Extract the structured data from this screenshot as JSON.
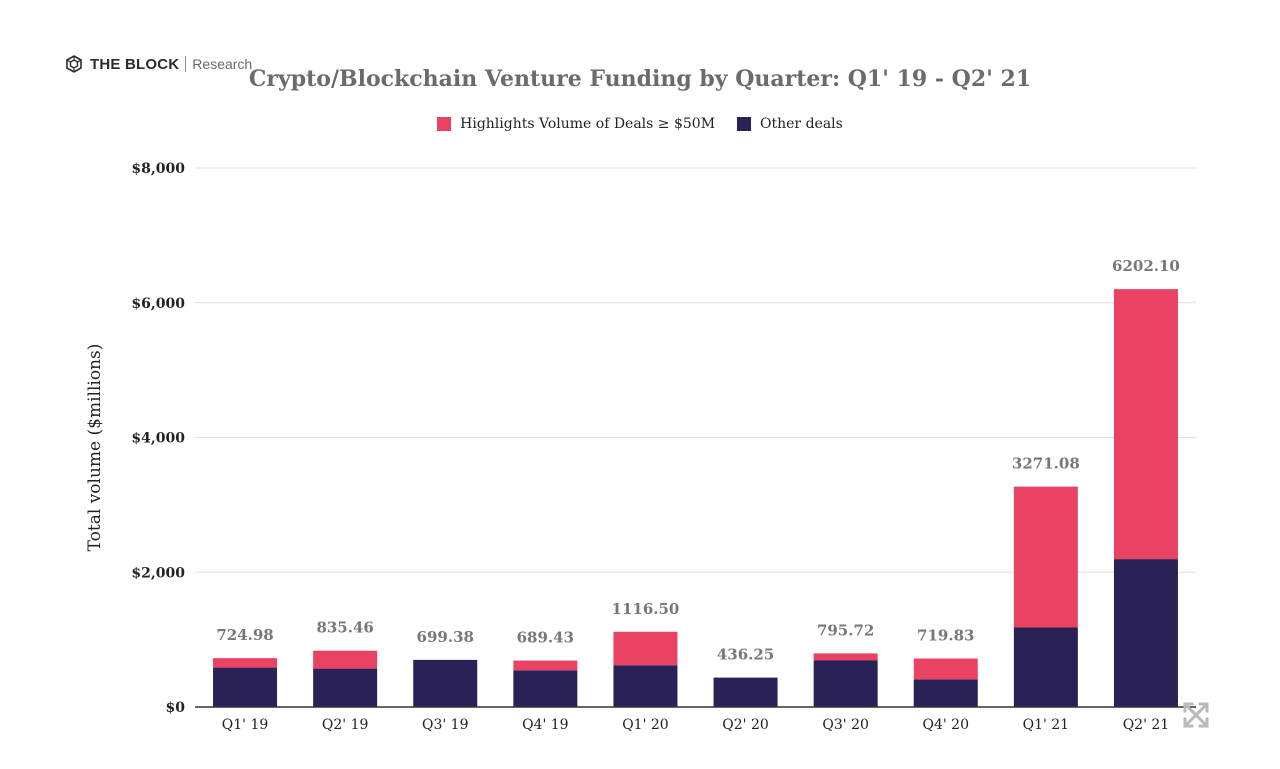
{
  "brand": {
    "name": "THE BLOCK",
    "sub": "Research"
  },
  "chart_data": {
    "type": "bar",
    "stacked": true,
    "title": "Crypto/Blockchain Venture Funding by Quarter: Q1' 19 - Q2' 21",
    "xlabel": "",
    "ylabel": "Total volume ($millions)",
    "ylim": [
      0,
      8000
    ],
    "yticks": [
      0,
      2000,
      4000,
      6000,
      8000
    ],
    "ytick_labels": [
      "$0",
      "$2,000",
      "$4,000",
      "$6,000",
      "$8,000"
    ],
    "grid": true,
    "legend_position": "top",
    "categories": [
      "Q1' 19",
      "Q2' 19",
      "Q3' 19",
      "Q4' 19",
      "Q1' 20",
      "Q2' 20",
      "Q3' 20",
      "Q4' 20",
      "Q1' 21",
      "Q2' 21"
    ],
    "series": [
      {
        "name": "Other deals",
        "color": "#2a2157",
        "values": [
          585,
          570,
          699.38,
          545,
          620,
          436.25,
          695,
          410,
          1180,
          2195
        ]
      },
      {
        "name": "Highlights Volume of Deals ≥ $50M",
        "color": "#ea4263",
        "values": [
          139.98,
          265.46,
          0,
          144.43,
          496.5,
          0,
          100.72,
          309.83,
          2091.08,
          4007.1
        ]
      }
    ],
    "totals": [
      724.98,
      835.46,
      699.38,
      689.43,
      1116.5,
      436.25,
      795.72,
      719.83,
      3271.08,
      6202.1
    ],
    "total_labels": [
      "724.98",
      "835.46",
      "699.38",
      "689.43",
      "1116.50",
      "436.25",
      "795.72",
      "719.83",
      "3271.08",
      "6202.10"
    ],
    "legend_order": [
      "Highlights Volume of Deals ≥ $50M",
      "Other deals"
    ]
  },
  "colors": {
    "grid": "#dddddd",
    "axis": "#333333",
    "title": "#6b6b6b",
    "total_label": "#777777"
  },
  "icons": {
    "logo": "cube-logo-icon",
    "expand": "expand-arrows-icon"
  }
}
